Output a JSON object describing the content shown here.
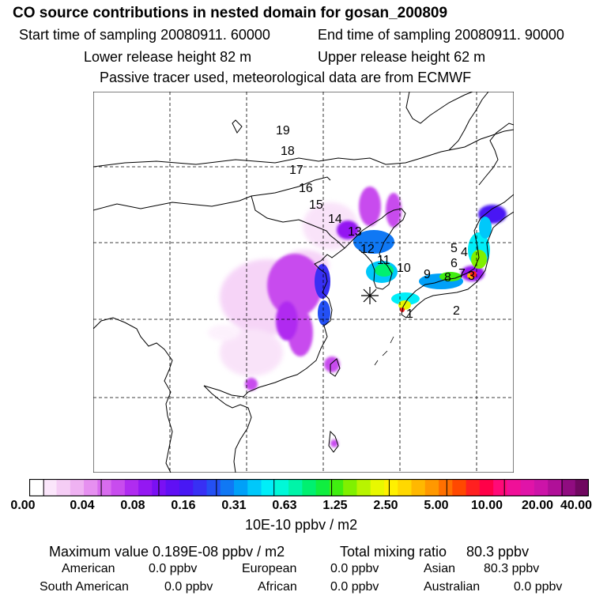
{
  "header": {
    "title": "CO  source contributions in nested domain for gosan_200809",
    "start_label": "Start time of sampling 20080911. 60000",
    "end_label": "End time of sampling 20080911. 90000",
    "lower_label": "Lower release height   82 m",
    "upper_label": "Upper release height   62 m",
    "info": "Passive tracer used, meteorological data are from ECMWF"
  },
  "map": {
    "trajectory_labels": [
      "1",
      "2",
      "3",
      "4",
      "5",
      "6",
      "7",
      "8",
      "9",
      "10",
      "11",
      "12",
      "13",
      "14",
      "15",
      "16",
      "17",
      "18",
      "19"
    ],
    "receptor": "gosan"
  },
  "colorbar": {
    "tick_labels": [
      "0.00",
      "0.04",
      "0.08",
      "0.16",
      "0.31",
      "0.63",
      "1.25",
      "2.50",
      "5.00",
      "10.00",
      "20.00",
      "40.00"
    ],
    "unit": "10E-10 ppbv / m2",
    "colors": [
      "#ffffff",
      "#fbe6fb",
      "#f5cdf5",
      "#efb2f2",
      "#e690f0",
      "#d86cee",
      "#c84cee",
      "#b02cf0",
      "#9418f2",
      "#7a10f4",
      "#6010f4",
      "#4818f4",
      "#3830f4",
      "#2450f4",
      "#1078f4",
      "#00a0f8",
      "#00c8fa",
      "#00eef8",
      "#00f8d8",
      "#00f4a8",
      "#00f070",
      "#10ee40",
      "#40ee10",
      "#80f000",
      "#b8f400",
      "#e8f800",
      "#fff000",
      "#ffd800",
      "#ffb800",
      "#ff9800",
      "#ff7000",
      "#ff4800",
      "#ff2020",
      "#ff0048",
      "#ff0a78",
      "#f01098",
      "#e014a8",
      "#cc14a8",
      "#b01098",
      "#900c80",
      "#700860"
    ]
  },
  "summary": {
    "max_label": "Maximum value  0.189E-08 ppbv / m2",
    "total_label": "Total mixing ratio",
    "total_value": "80.3 ppbv",
    "regions": [
      {
        "name": "American",
        "value": "0.0 ppbv"
      },
      {
        "name": "European",
        "value": "0.0 ppbv"
      },
      {
        "name": "Asian",
        "value": "80.3 ppbv"
      },
      {
        "name": "South American",
        "value": "0.0 ppbv"
      },
      {
        "name": "African",
        "value": "0.0 ppbv"
      },
      {
        "name": "Australian",
        "value": "0.0 ppbv"
      }
    ]
  }
}
